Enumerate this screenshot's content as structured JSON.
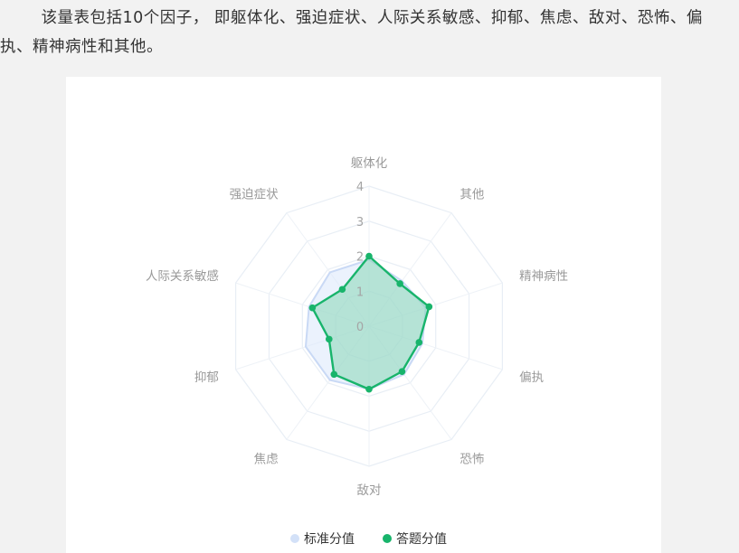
{
  "intro_text": "该量表包括10个因子， 即躯体化、强迫症状、人际关系敏感、抑郁、焦虑、敌对、恐怖、偏执、精神病性和其他。",
  "chart_data": {
    "type": "radar",
    "axes": [
      "躯体化",
      "其他",
      "精神病性",
      "偏执",
      "恐怖",
      "敌对",
      "焦虑",
      "抑郁",
      "人际关系敏感",
      "强迫症状"
    ],
    "rlim": [
      0,
      4
    ],
    "ticks": [
      "0",
      "1",
      "2",
      "3",
      "4"
    ],
    "grid": true,
    "legend_position": "bottom-center",
    "series": [
      {
        "name": "标准分值",
        "values": [
          1.9,
          1.6,
          1.7,
          1.6,
          1.7,
          1.8,
          1.9,
          1.9,
          1.8,
          1.9
        ],
        "color": "#c9d9f5",
        "fill": "#dbe7fb"
      },
      {
        "name": "答题分值",
        "values": [
          2.0,
          1.5,
          1.8,
          1.5,
          1.6,
          1.8,
          1.7,
          1.2,
          1.7,
          1.3
        ],
        "color": "#18b46b",
        "fill": "#7fd4b0"
      }
    ]
  }
}
